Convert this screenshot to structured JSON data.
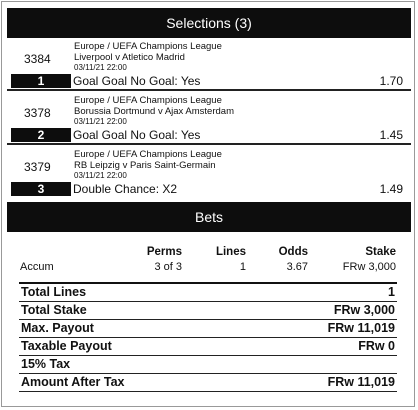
{
  "selections_header": "Selections (3)",
  "selections": [
    {
      "number": "3384",
      "league": "Europe / UEFA Champions League",
      "teams": "Liverpool v Atletico Madrid",
      "datetime": "03/11/21 22:00",
      "index": "1",
      "market": "Goal Goal No Goal: Yes",
      "odds": "1.70"
    },
    {
      "number": "3378",
      "league": "Europe / UEFA Champions League",
      "teams": "Borussia Dortmund v Ajax Amsterdam",
      "datetime": "03/11/21 22:00",
      "index": "2",
      "market": "Goal Goal No Goal: Yes",
      "odds": "1.45"
    },
    {
      "number": "3379",
      "league": "Europe / UEFA Champions League",
      "teams": "RB Leipzig v Paris Saint-Germain",
      "datetime": "03/11/21 22:00",
      "index": "3",
      "market": "Double Chance: X2",
      "odds": "1.49"
    }
  ],
  "bets_header": "Bets",
  "bets_table": {
    "headers": [
      "",
      "Perms",
      "Lines",
      "Odds",
      "Stake"
    ],
    "rows": [
      [
        "Accum",
        "3 of 3",
        "1",
        "3.67",
        "FRw 3,000"
      ]
    ]
  },
  "summary": [
    {
      "label": "Total Lines",
      "value": "1"
    },
    {
      "label": "Total Stake",
      "value": "FRw 3,000"
    },
    {
      "label": "Max. Payout",
      "value": "FRw 11,019"
    },
    {
      "label": "Taxable Payout",
      "value": "FRw 0"
    },
    {
      "label": "15% Tax",
      "value": ""
    },
    {
      "label": "Amount After Tax",
      "value": "FRw 11,019"
    }
  ]
}
